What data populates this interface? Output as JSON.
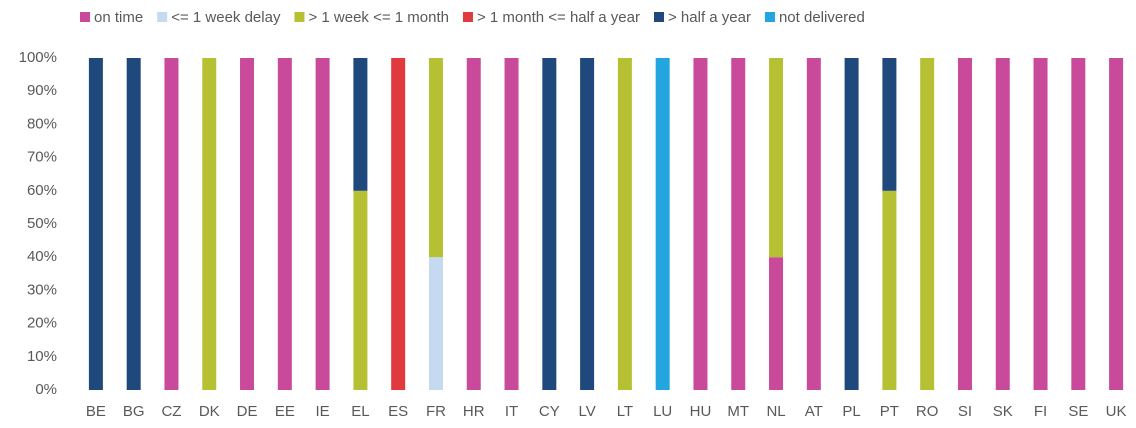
{
  "chart_data": {
    "type": "stacked_bar",
    "categories": [
      "BE",
      "BG",
      "CZ",
      "DK",
      "DE",
      "EE",
      "IE",
      "EL",
      "ES",
      "FR",
      "HR",
      "IT",
      "CY",
      "LV",
      "LT",
      "LU",
      "HU",
      "MT",
      "NL",
      "AT",
      "PL",
      "PT",
      "RO",
      "SI",
      "SK",
      "FI",
      "SE",
      "UK"
    ],
    "series": [
      {
        "name": "on time",
        "color": "#c9499a",
        "values": [
          0,
          0,
          100,
          0,
          100,
          100,
          100,
          0,
          0,
          0,
          100,
          100,
          0,
          0,
          0,
          0,
          100,
          100,
          40,
          100,
          0,
          0,
          0,
          100,
          100,
          100,
          100,
          100
        ]
      },
      {
        "name": "<= 1 week delay",
        "color": "#c5d9f1",
        "values": [
          0,
          0,
          0,
          0,
          0,
          0,
          0,
          0,
          0,
          40,
          0,
          0,
          0,
          0,
          0,
          0,
          0,
          0,
          0,
          0,
          0,
          0,
          0,
          0,
          0,
          0,
          0,
          0
        ]
      },
      {
        "name": "> 1 week <= 1 month",
        "color": "#b5c133",
        "values": [
          0,
          0,
          0,
          100,
          0,
          0,
          0,
          60,
          0,
          60,
          0,
          0,
          0,
          0,
          100,
          0,
          0,
          0,
          60,
          0,
          0,
          60,
          100,
          0,
          0,
          0,
          0,
          0
        ]
      },
      {
        "name": "> 1 month <= half a year",
        "color": "#e0393e",
        "values": [
          0,
          0,
          0,
          0,
          0,
          0,
          0,
          0,
          100,
          0,
          0,
          0,
          0,
          0,
          0,
          0,
          0,
          0,
          0,
          0,
          0,
          0,
          0,
          0,
          0,
          0,
          0,
          0
        ]
      },
      {
        "name": "> half a year",
        "color": "#1f497d",
        "values": [
          100,
          100,
          0,
          0,
          0,
          0,
          0,
          40,
          0,
          0,
          0,
          0,
          100,
          100,
          0,
          0,
          0,
          0,
          0,
          0,
          100,
          40,
          0,
          0,
          0,
          0,
          0,
          0
        ]
      },
      {
        "name": "not delivered",
        "color": "#23a6df",
        "values": [
          0,
          0,
          0,
          0,
          0,
          0,
          0,
          0,
          0,
          0,
          0,
          0,
          0,
          0,
          0,
          100,
          0,
          0,
          0,
          0,
          0,
          0,
          0,
          0,
          0,
          0,
          0,
          0
        ]
      }
    ],
    "ylim": [
      0,
      100
    ],
    "yticks": [
      {
        "value": 0,
        "label": "0%"
      },
      {
        "value": 10,
        "label": "10%"
      },
      {
        "value": 20,
        "label": "20%"
      },
      {
        "value": 30,
        "label": "30%"
      },
      {
        "value": 40,
        "label": "40%"
      },
      {
        "value": 50,
        "label": "50%"
      },
      {
        "value": 60,
        "label": "60%"
      },
      {
        "value": 70,
        "label": "70%"
      },
      {
        "value": 80,
        "label": "80%"
      },
      {
        "value": 90,
        "label": "90%"
      },
      {
        "value": 100,
        "label": "100%"
      }
    ],
    "grid": false,
    "legend": "top"
  }
}
